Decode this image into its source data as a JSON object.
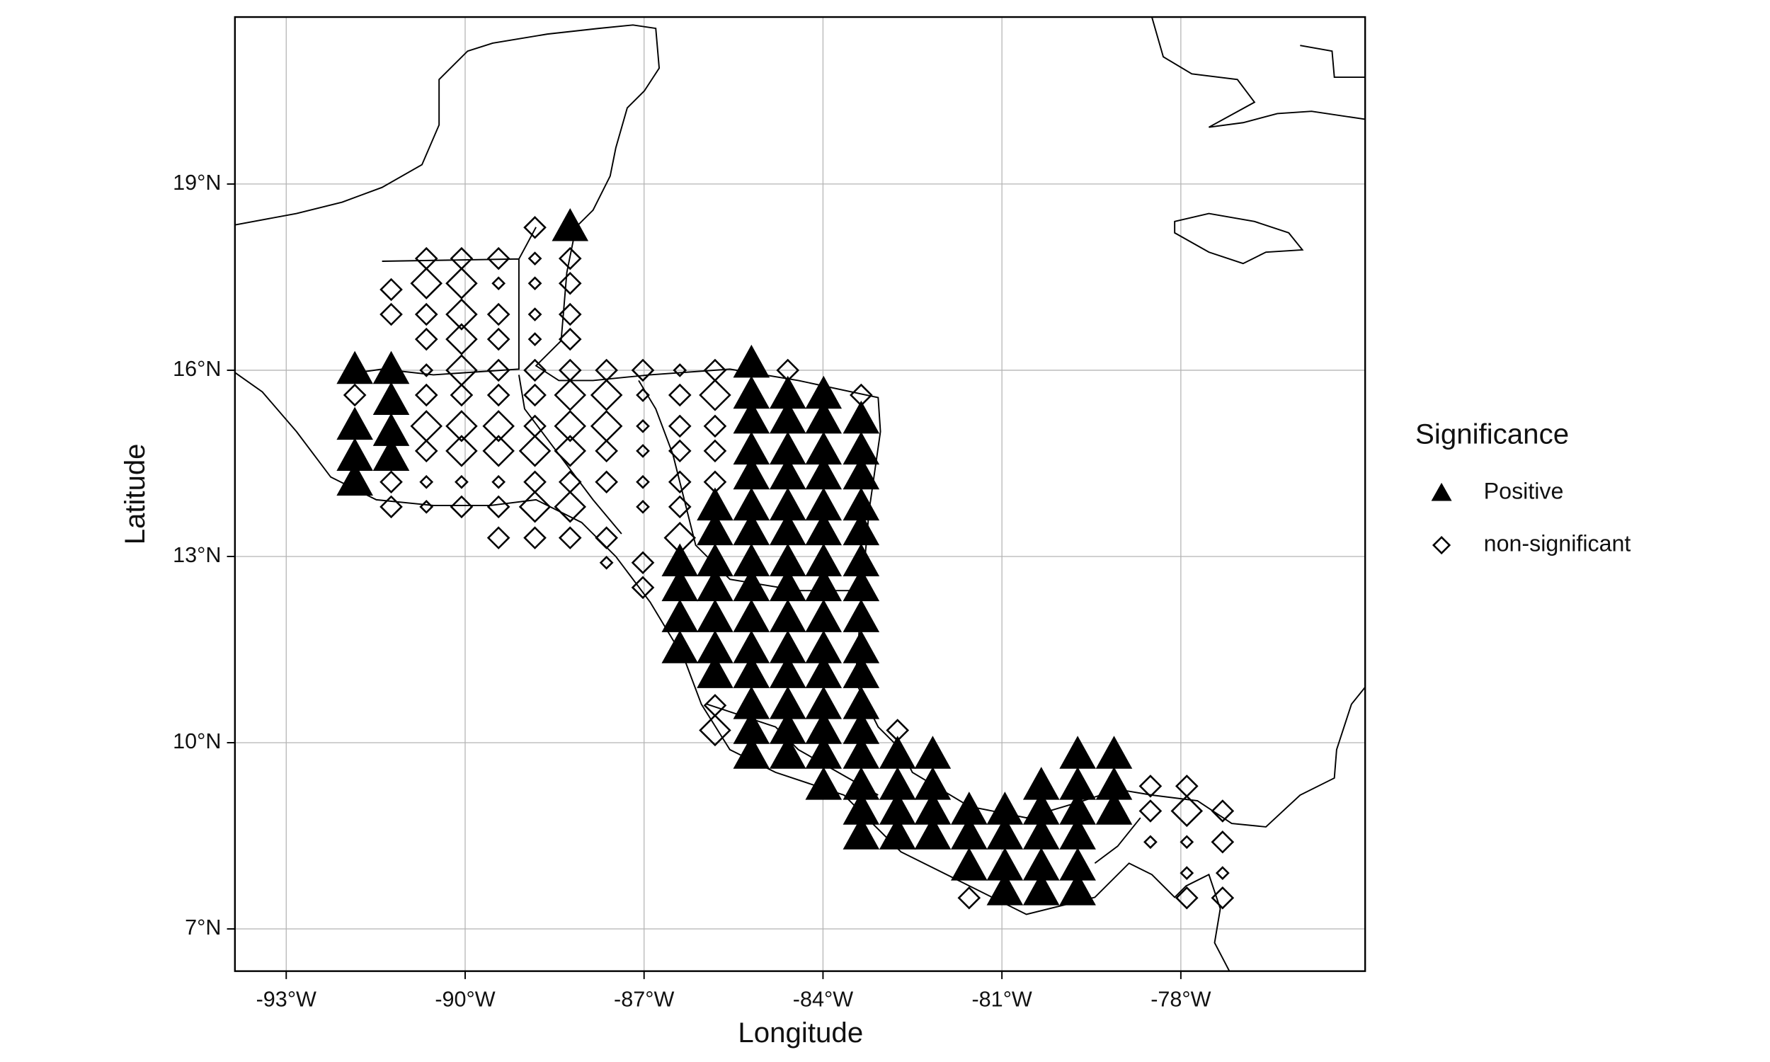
{
  "chart_data": {
    "type": "scatter",
    "xlabel": "Longitude",
    "ylabel": "Latitude",
    "legend_title": "Significance",
    "legend": "right",
    "grid": true,
    "xlim": [
      -93.86,
      -74.91
    ],
    "ylim": [
      6.32,
      21.69
    ],
    "xticks": [
      {
        "value": -93,
        "label": "-93°W"
      },
      {
        "value": -90,
        "label": "-90°W"
      },
      {
        "value": -87,
        "label": "-87°W"
      },
      {
        "value": -84,
        "label": "-84°W"
      },
      {
        "value": -81,
        "label": "-81°W"
      },
      {
        "value": -78,
        "label": "-78°W"
      }
    ],
    "yticks": [
      {
        "value": 7,
        "label": "7°N"
      },
      {
        "value": 10,
        "label": "10°N"
      },
      {
        "value": 13,
        "label": "13°N"
      },
      {
        "value": 16,
        "label": "16°N"
      },
      {
        "value": 19,
        "label": "19°N"
      }
    ],
    "series": [
      {
        "name": "Positive",
        "marker": "triangle",
        "color": "#000000",
        "x": [
          -91.85,
          -91.85,
          -91.85,
          -91.85,
          -91.24,
          -91.24,
          -91.24,
          -91.24,
          -88.24,
          -86.4,
          -86.4,
          -86.4,
          -86.4,
          -85.81,
          -85.81,
          -85.81,
          -85.81,
          -85.81,
          -85.81,
          -85.81,
          -85.2,
          -85.2,
          -85.2,
          -85.2,
          -85.2,
          -85.2,
          -85.2,
          -85.2,
          -85.2,
          -85.2,
          -85.2,
          -85.2,
          -85.2,
          -85.2,
          -85.2,
          -84.59,
          -84.59,
          -84.59,
          -84.59,
          -84.59,
          -84.59,
          -84.59,
          -84.59,
          -84.59,
          -84.59,
          -84.59,
          -84.59,
          -84.59,
          -84.59,
          -83.99,
          -83.99,
          -83.99,
          -83.99,
          -83.99,
          -83.99,
          -83.99,
          -83.99,
          -83.99,
          -83.99,
          -83.99,
          -83.99,
          -83.99,
          -83.99,
          -83.99,
          -83.36,
          -83.36,
          -83.36,
          -83.36,
          -83.36,
          -83.36,
          -83.36,
          -83.36,
          -83.36,
          -83.36,
          -83.36,
          -83.36,
          -83.36,
          -83.36,
          -83.36,
          -83.36,
          -82.75,
          -82.75,
          -82.75,
          -82.75,
          -82.16,
          -82.16,
          -82.16,
          -82.16,
          -81.55,
          -81.55,
          -81.55,
          -80.95,
          -80.95,
          -80.95,
          -80.95,
          -80.34,
          -80.34,
          -80.34,
          -80.34,
          -80.34,
          -79.73,
          -79.73,
          -79.73,
          -79.73,
          -79.73,
          -79.73,
          -79.12,
          -79.12,
          -79.12
        ],
        "values": [
          16.0,
          15.1,
          14.6,
          14.2,
          16.0,
          15.5,
          15.0,
          14.6,
          18.3,
          12.9,
          12.5,
          12.0,
          11.5,
          13.8,
          13.4,
          12.9,
          12.5,
          12.0,
          11.5,
          11.1,
          16.1,
          15.6,
          15.2,
          14.7,
          14.3,
          13.8,
          13.4,
          12.9,
          12.5,
          12.0,
          11.5,
          11.1,
          10.6,
          10.2,
          9.8,
          15.6,
          15.2,
          14.7,
          14.3,
          13.8,
          13.4,
          12.9,
          12.5,
          12.0,
          11.5,
          11.1,
          10.6,
          10.2,
          9.8,
          15.6,
          15.2,
          14.7,
          14.3,
          13.8,
          13.4,
          12.9,
          12.5,
          12.0,
          11.5,
          11.1,
          10.6,
          10.2,
          9.8,
          9.3,
          15.2,
          14.7,
          14.3,
          13.8,
          13.4,
          12.9,
          12.5,
          12.0,
          11.5,
          11.1,
          10.6,
          10.2,
          9.8,
          9.3,
          8.9,
          8.5,
          9.8,
          9.3,
          8.9,
          8.5,
          9.8,
          9.3,
          8.9,
          8.5,
          8.9,
          8.5,
          8.0,
          8.9,
          8.5,
          8.0,
          7.6,
          9.3,
          8.9,
          8.5,
          8.0,
          7.6,
          9.8,
          9.3,
          8.9,
          8.5,
          8.0,
          7.6,
          9.8,
          9.3,
          8.9
        ]
      },
      {
        "name": "non-significant",
        "marker": "diamond",
        "color": "#000000",
        "x": [
          -91.85,
          -91.24,
          -91.24,
          -91.24,
          -91.24,
          -90.65,
          -90.65,
          -90.65,
          -90.65,
          -90.65,
          -90.65,
          -90.65,
          -90.65,
          -90.65,
          -90.65,
          -90.06,
          -90.06,
          -90.06,
          -90.06,
          -90.06,
          -90.06,
          -90.06,
          -90.06,
          -90.06,
          -90.06,
          -89.44,
          -89.44,
          -89.44,
          -89.44,
          -89.44,
          -89.44,
          -89.44,
          -89.44,
          -89.44,
          -89.44,
          -89.44,
          -88.83,
          -88.83,
          -88.83,
          -88.83,
          -88.83,
          -88.83,
          -88.83,
          -88.83,
          -88.83,
          -88.83,
          -88.83,
          -88.83,
          -88.24,
          -88.24,
          -88.24,
          -88.24,
          -88.24,
          -88.24,
          -88.24,
          -88.24,
          -88.24,
          -88.24,
          -88.24,
          -87.63,
          -87.63,
          -87.63,
          -87.63,
          -87.63,
          -87.63,
          -87.63,
          -87.02,
          -87.02,
          -87.02,
          -87.02,
          -87.02,
          -87.02,
          -87.02,
          -87.02,
          -86.4,
          -86.4,
          -86.4,
          -86.4,
          -86.4,
          -86.4,
          -86.4,
          -85.81,
          -85.81,
          -85.81,
          -85.81,
          -85.81,
          -85.81,
          -85.81,
          -84.59,
          -83.36,
          -82.75,
          -81.55,
          -78.51,
          -78.51,
          -78.51,
          -77.9,
          -77.9,
          -77.9,
          -77.9,
          -77.9,
          -77.3,
          -77.3,
          -77.3,
          -77.3
        ],
        "values": [
          15.6,
          17.3,
          16.9,
          14.2,
          13.8,
          17.8,
          17.4,
          16.9,
          16.5,
          16.0,
          15.6,
          15.1,
          14.7,
          14.2,
          13.8,
          17.8,
          17.4,
          16.9,
          16.5,
          16.0,
          15.6,
          15.1,
          14.7,
          14.2,
          13.8,
          17.8,
          17.4,
          16.9,
          16.5,
          16.0,
          15.6,
          15.1,
          14.7,
          14.2,
          13.8,
          13.3,
          18.3,
          17.8,
          17.4,
          16.9,
          16.5,
          16.0,
          15.6,
          15.1,
          14.7,
          14.2,
          13.8,
          13.3,
          17.8,
          17.4,
          16.9,
          16.5,
          16.0,
          15.6,
          15.1,
          14.7,
          14.2,
          13.8,
          13.3,
          16.0,
          15.6,
          15.1,
          14.7,
          14.2,
          13.3,
          12.9,
          16.0,
          15.6,
          15.1,
          14.7,
          14.2,
          13.8,
          12.9,
          12.5,
          16.0,
          15.6,
          15.1,
          14.7,
          14.2,
          13.8,
          13.3,
          16.0,
          15.6,
          15.1,
          14.7,
          14.2,
          10.6,
          10.2,
          16.0,
          15.6,
          10.2,
          7.5,
          9.3,
          8.9,
          8.4,
          9.3,
          8.9,
          8.4,
          7.9,
          7.5,
          8.9,
          8.4,
          7.9,
          7.5
        ],
        "sizes": [
          2,
          2,
          2,
          2,
          2,
          2,
          3,
          2,
          2,
          1,
          2,
          3,
          2,
          1,
          1,
          2,
          3,
          3,
          3,
          3,
          2,
          3,
          3,
          1,
          2,
          2,
          1,
          2,
          2,
          2,
          2,
          3,
          3,
          1,
          2,
          2,
          2,
          1,
          1,
          1,
          1,
          2,
          2,
          2,
          3,
          2,
          3,
          2,
          2,
          2,
          2,
          2,
          2,
          3,
          3,
          3,
          2,
          3,
          2,
          2,
          3,
          3,
          2,
          2,
          2,
          1,
          2,
          1,
          1,
          1,
          1,
          1,
          2,
          2,
          1,
          2,
          2,
          2,
          2,
          2,
          3,
          2,
          3,
          2,
          2,
          2,
          2,
          3,
          2,
          2,
          2,
          2,
          2,
          2,
          1,
          2,
          3,
          1,
          1,
          2,
          2,
          2,
          1,
          2
        ]
      }
    ]
  }
}
